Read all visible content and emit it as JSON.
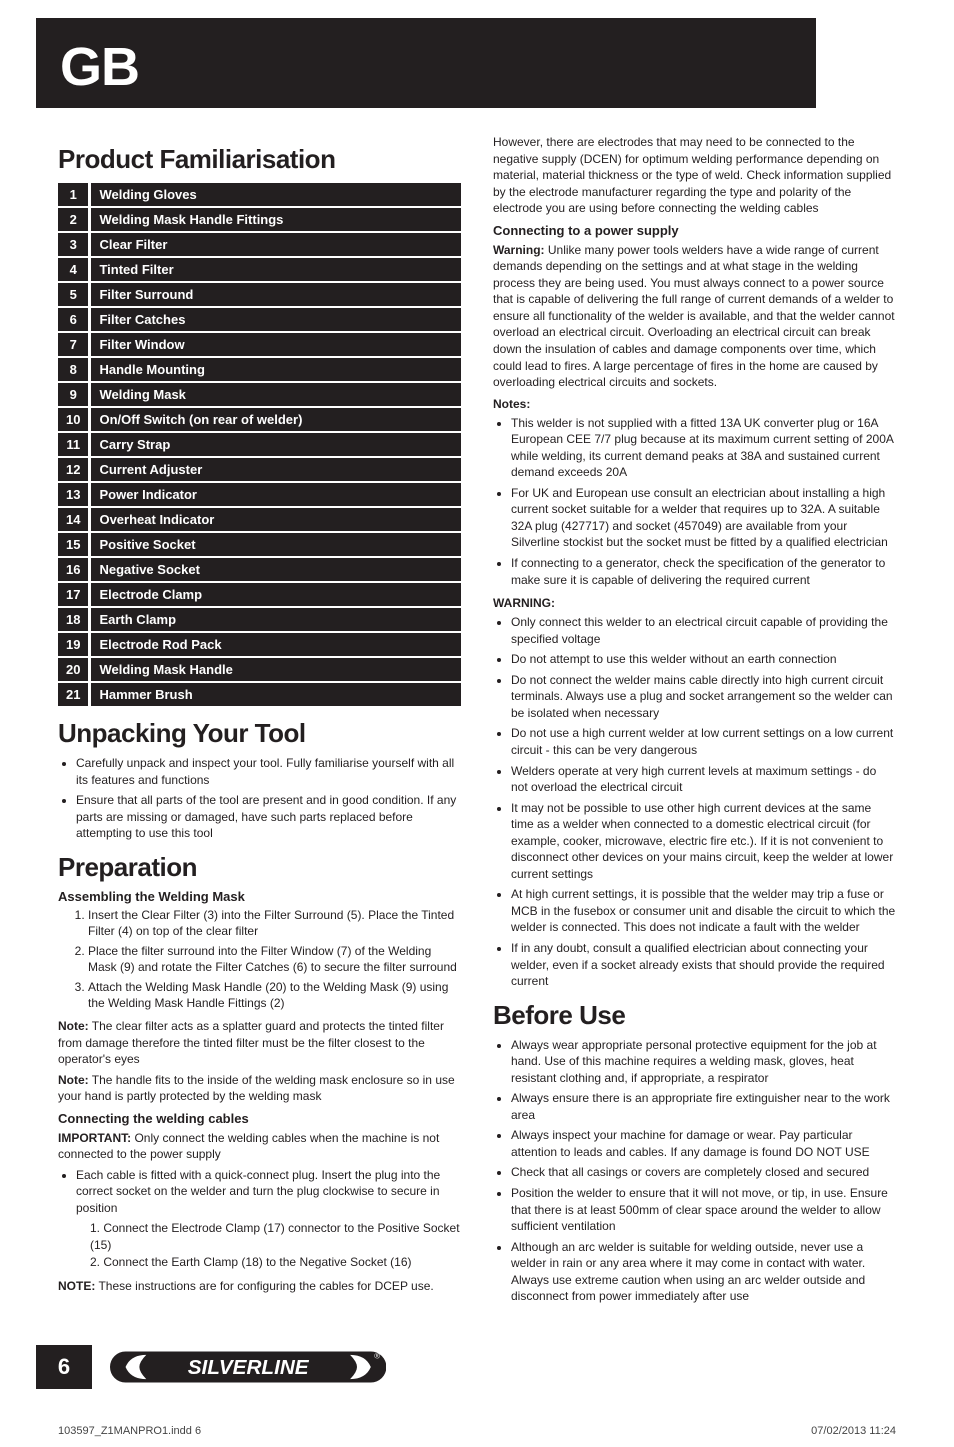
{
  "crop": true,
  "gb": "GB",
  "left": {
    "h_product": "Product Familiarisation",
    "parts": [
      {
        "n": "1",
        "t": "Welding Gloves"
      },
      {
        "n": "2",
        "t": "Welding Mask Handle Fittings"
      },
      {
        "n": "3",
        "t": "Clear Filter"
      },
      {
        "n": "4",
        "t": "Tinted Filter"
      },
      {
        "n": "5",
        "t": "Filter Surround"
      },
      {
        "n": "6",
        "t": "Filter Catches"
      },
      {
        "n": "7",
        "t": "Filter Window"
      },
      {
        "n": "8",
        "t": "Handle Mounting"
      },
      {
        "n": "9",
        "t": "Welding Mask"
      },
      {
        "n": "10",
        "t": "On/Off Switch (on rear of welder)"
      },
      {
        "n": "11",
        "t": "Carry Strap"
      },
      {
        "n": "12",
        "t": "Current Adjuster"
      },
      {
        "n": "13",
        "t": "Power Indicator"
      },
      {
        "n": "14",
        "t": "Overheat Indicator"
      },
      {
        "n": "15",
        "t": "Positive Socket"
      },
      {
        "n": "16",
        "t": "Negative Socket"
      },
      {
        "n": "17",
        "t": "Electrode Clamp"
      },
      {
        "n": "18",
        "t": "Earth Clamp"
      },
      {
        "n": "19",
        "t": "Electrode Rod Pack"
      },
      {
        "n": "20",
        "t": "Welding Mask Handle"
      },
      {
        "n": "21",
        "t": "Hammer Brush"
      }
    ],
    "h_unpack": "Unpacking Your Tool",
    "unpack": [
      "Carefully unpack and inspect your tool. Fully familiarise yourself with all its features and functions",
      "Ensure that all parts of the tool are present and in good condition. If any parts are missing or damaged, have such parts replaced before attempting to use this tool"
    ],
    "h_prep": "Preparation",
    "sub_assemble": "Assembling the Welding Mask",
    "assemble": [
      "Insert the Clear Filter (3) into the Filter Surround (5). Place the Tinted Filter (4) on top of the clear filter",
      "Place the filter surround into the Filter Window (7) of the Welding Mask (9) and rotate the Filter Catches (6)  to secure the filter surround",
      "Attach the Welding Mask Handle (20) to the Welding Mask (9) using the Welding Mask Handle Fittings (2)"
    ],
    "note1_lead": "Note:",
    "note1": " The clear filter acts as a splatter guard and protects the tinted filter from damage therefore the tinted filter must be the filter closest to the operator's eyes",
    "note2_lead": "Note:",
    "note2": " The handle fits to the inside of the welding mask enclosure so in use your hand is partly protected by the welding mask",
    "sub_cables": "Connecting the welding cables",
    "imp_lead": "IMPORTANT:",
    "imp": " Only connect the welding cables when the machine is not connected to the power supply",
    "cable_b1": "Each cable is fitted with a quick-connect plug. Insert the plug into the correct socket on the welder and turn the plug clockwise to secure in position",
    "cable_s1": "1. Connect the Electrode Clamp (17) connector to the Positive Socket (15)",
    "cable_s2": "2. Connect the Earth Clamp (18) to the Negative Socket (16)",
    "note3_lead": "NOTE:",
    "note3": " These instructions are for configuring the cables for DCEP use."
  },
  "right": {
    "intro": "However, there are electrodes that may need to be connected to the negative supply (DCEN) for optimum welding performance depending on material, material thickness or the type of weld. Check information supplied by the electrode manufacturer regarding the type and polarity of the electrode you are using before connecting the welding cables",
    "sub_power": "Connecting to a power supply",
    "warn_lead": "Warning:",
    "warn": " Unlike many power tools welders have a wide range of current demands depending on the settings and at what stage in the welding process they are being used. You must always connect to a power source that is capable of delivering the full range of current demands of a welder to ensure all functionality of the welder is available, and that the welder cannot overload an electrical circuit. Overloading an electrical circuit can break down the insulation of cables and damage components over time, which could lead to fires.  A large percentage of fires in the home are caused by overloading electrical circuits and sockets.",
    "notes_lbl": "Notes:",
    "notes": [
      "This welder is not supplied with a fitted 13A UK converter plug or 16A European CEE 7/7 plug because at its maximum current setting of 200A while welding, its current demand peaks at 38A and sustained current demand exceeds 20A",
      "For UK and European use consult an electrician about installing a high current socket suitable for a welder that requires up to 32A.  A suitable 32A plug (427717) and socket (457049) are available from your Silverline stockist but the socket must be fitted by a qualified electrician",
      "If connecting to a generator, check the specification of the generator to make sure it is capable of delivering the required current"
    ],
    "warning_lbl": "WARNING:",
    "warnings": [
      "Only connect this welder to an electrical circuit capable of providing the specified voltage",
      "Do not attempt to use this welder without an earth connection",
      "Do not connect the welder mains cable directly into high current circuit terminals. Always use a plug and socket arrangement so the welder can be isolated when necessary",
      "Do not use a high current welder at low current settings on a low current circuit - this can be very dangerous",
      "Welders operate at very high current levels at maximum settings - do not overload the electrical circuit",
      "It may not be possible to use other high current devices at the same time as a welder when connected to a domestic electrical circuit (for example, cooker, microwave, electric fire etc.). If it is not convenient to disconnect other devices on your mains circuit, keep the welder at lower current settings",
      "At high current settings, it is possible that the welder may trip a fuse or MCB in the fusebox or consumer unit and disable the circuit to which the welder is connected. This does not indicate a fault with the welder",
      "If in any doubt, consult a qualified electrician about connecting your welder, even if a socket already exists that should provide the required current"
    ],
    "h_before": "Before Use",
    "before": [
      "Always wear appropriate personal protective equipment for the job at hand. Use of this machine requires a welding mask, gloves, heat resistant clothing and, if appropriate, a respirator",
      "Always ensure there is an appropriate fire extinguisher near to the work area",
      "Always inspect your machine for damage or wear. Pay particular attention to leads and cables. If any damage is found DO NOT USE",
      "Check that all casings or covers are completely closed and secured",
      "Position the welder to ensure that it will not move, or tip, in use. Ensure that there is at least 500mm of clear space around the welder to allow sufficient ventilation",
      "Although an arc welder is suitable for welding outside, never use a welder in rain or any area where it may come in contact with water. Always use extreme caution when using an arc welder outside and disconnect from power immediately after use"
    ]
  },
  "footer": {
    "page": "6",
    "logo": "SILVERLINE",
    "file": "103597_Z1MANPRO1.indd   6",
    "ts": "07/02/2013   11:24"
  }
}
